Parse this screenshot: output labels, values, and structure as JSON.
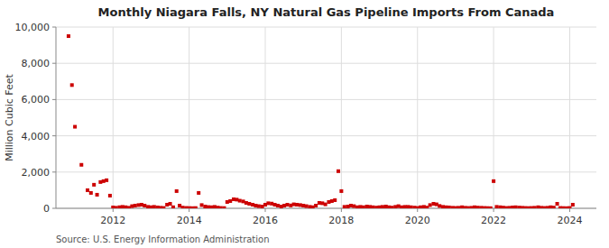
{
  "chart_data": {
    "type": "scatter",
    "title": "Monthly Niagara Falls, NY Natural Gas Pipeline Imports From Canada",
    "ylabel": "Million Cubic Feet",
    "source": "Source: U.S. Energy Information Administration",
    "color": "#cc0000",
    "marker": "square",
    "grid": true,
    "xlim": [
      2010.5,
      2024.7
    ],
    "xticks": [
      2012,
      2014,
      2016,
      2018,
      2020,
      2022,
      2024
    ],
    "ylim": [
      0,
      10000
    ],
    "yticks": [
      0,
      {
        "value": 2000,
        "label": "2,000"
      },
      {
        "value": 4000,
        "label": "4,000"
      },
      {
        "value": 6000,
        "label": "6,000"
      },
      {
        "value": 8000,
        "label": "8,000"
      },
      {
        "value": 10000,
        "label": "10,000"
      }
    ],
    "x": [
      2010.83,
      2010.92,
      2011.0,
      2011.17,
      2011.33,
      2011.42,
      2011.5,
      2011.58,
      2011.67,
      2011.75,
      2011.83,
      2011.92,
      2012.0,
      2012.08,
      2012.17,
      2012.25,
      2012.33,
      2012.42,
      2012.5,
      2012.58,
      2012.67,
      2012.75,
      2012.83,
      2012.92,
      2013.0,
      2013.08,
      2013.17,
      2013.25,
      2013.33,
      2013.42,
      2013.5,
      2013.58,
      2013.67,
      2013.75,
      2013.83,
      2013.92,
      2014.0,
      2014.08,
      2014.17,
      2014.25,
      2014.33,
      2014.42,
      2014.5,
      2014.58,
      2014.67,
      2014.75,
      2014.83,
      2014.92,
      2015.0,
      2015.08,
      2015.17,
      2015.25,
      2015.33,
      2015.42,
      2015.5,
      2015.58,
      2015.67,
      2015.75,
      2015.83,
      2015.92,
      2016.0,
      2016.08,
      2016.17,
      2016.25,
      2016.33,
      2016.42,
      2016.5,
      2016.58,
      2016.67,
      2016.75,
      2016.83,
      2016.92,
      2017.0,
      2017.08,
      2017.17,
      2017.25,
      2017.33,
      2017.42,
      2017.5,
      2017.58,
      2017.67,
      2017.75,
      2017.83,
      2017.92,
      2018.0,
      2018.08,
      2018.17,
      2018.25,
      2018.33,
      2018.42,
      2018.5,
      2018.58,
      2018.67,
      2018.75,
      2018.83,
      2018.92,
      2019.0,
      2019.08,
      2019.17,
      2019.25,
      2019.33,
      2019.42,
      2019.5,
      2019.58,
      2019.67,
      2019.75,
      2019.83,
      2019.92,
      2020.0,
      2020.08,
      2020.17,
      2020.25,
      2020.33,
      2020.42,
      2020.5,
      2020.58,
      2020.67,
      2020.75,
      2020.83,
      2020.92,
      2021.0,
      2021.08,
      2021.17,
      2021.25,
      2021.33,
      2021.42,
      2021.5,
      2021.58,
      2021.67,
      2021.75,
      2021.83,
      2021.92,
      2022.0,
      2022.08,
      2022.17,
      2022.25,
      2022.33,
      2022.42,
      2022.5,
      2022.58,
      2022.67,
      2022.75,
      2022.83,
      2022.92,
      2023.0,
      2023.08,
      2023.17,
      2023.25,
      2023.33,
      2023.42,
      2023.5,
      2023.58,
      2023.67,
      2023.75,
      2023.83,
      2023.92,
      2024.0,
      2024.08
    ],
    "values": [
      9500,
      6800,
      4500,
      2400,
      1000,
      850,
      1300,
      750,
      1450,
      1500,
      1550,
      700,
      50,
      30,
      60,
      80,
      60,
      30,
      120,
      150,
      180,
      200,
      150,
      80,
      60,
      80,
      50,
      30,
      20,
      200,
      250,
      60,
      950,
      150,
      40,
      20,
      15,
      10,
      15,
      850,
      180,
      100,
      70,
      60,
      80,
      40,
      20,
      15,
      350,
      400,
      500,
      480,
      420,
      380,
      300,
      250,
      200,
      150,
      120,
      100,
      200,
      280,
      260,
      200,
      150,
      100,
      150,
      200,
      160,
      220,
      200,
      180,
      150,
      120,
      80,
      60,
      150,
      300,
      280,
      220,
      350,
      400,
      450,
      2050,
      950,
      80,
      100,
      150,
      120,
      60,
      80,
      60,
      100,
      80,
      60,
      40,
      60,
      80,
      100,
      60,
      40,
      80,
      120,
      60,
      80,
      80,
      60,
      40,
      20,
      60,
      80,
      40,
      180,
      250,
      220,
      130,
      80,
      60,
      50,
      30,
      20,
      30,
      60,
      30,
      20,
      30,
      60,
      40,
      30,
      20,
      15,
      10,
      1500,
      80,
      60,
      40,
      20,
      30,
      50,
      60,
      40,
      30,
      20,
      15,
      20,
      30,
      60,
      30,
      20,
      30,
      60,
      40,
      250,
      20,
      15,
      10,
      20,
      200
    ]
  }
}
